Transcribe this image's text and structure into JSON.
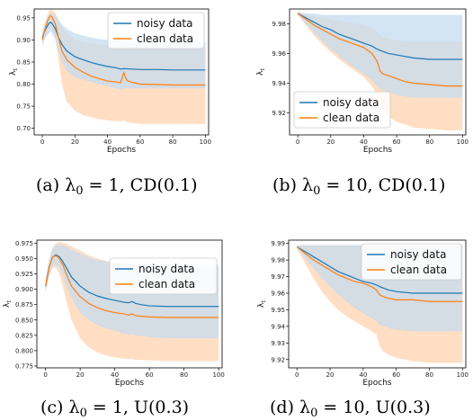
{
  "colors": {
    "noisy": "#1f77b4",
    "clean": "#ff7f0e",
    "noisy_band": "#c6dbef",
    "clean_band": "#ffd8b8"
  },
  "chart_data": [
    {
      "id": "a",
      "type": "line",
      "caption": {
        "prefix": "(a)  λ",
        "sub": "0",
        "suffix": " = 1, CD(0.1)"
      },
      "xlabel": "Epochs",
      "ylabel": "λ",
      "ylabel_sub": "t",
      "xlim": [
        -5,
        102
      ],
      "ylim": [
        0.685,
        0.97
      ],
      "xticks": [
        0,
        20,
        40,
        60,
        80,
        100
      ],
      "xtick_labels": [
        "0",
        "20",
        "40",
        "60",
        "80",
        "100"
      ],
      "yticks": [
        0.7,
        0.75,
        0.8,
        0.85,
        0.9,
        0.95
      ],
      "ytick_labels": [
        "0.70",
        "0.75",
        "0.80",
        "0.85",
        "0.90",
        "0.95"
      ],
      "legend": "top-right",
      "series": [
        {
          "name": "noisy data",
          "key": "noisy",
          "x": [
            0,
            2,
            4,
            5,
            6,
            8,
            10,
            12,
            15,
            20,
            25,
            30,
            35,
            40,
            45,
            48,
            50,
            55,
            60,
            70,
            80,
            90,
            100
          ],
          "y": [
            0.905,
            0.925,
            0.937,
            0.94,
            0.937,
            0.925,
            0.905,
            0.89,
            0.875,
            0.862,
            0.855,
            0.849,
            0.844,
            0.84,
            0.837,
            0.834,
            0.835,
            0.834,
            0.833,
            0.833,
            0.832,
            0.832,
            0.832
          ],
          "upper": [
            0.92,
            0.94,
            0.955,
            0.96,
            0.96,
            0.955,
            0.945,
            0.935,
            0.925,
            0.915,
            0.91,
            0.905,
            0.902,
            0.9,
            0.898,
            0.896,
            0.897,
            0.896,
            0.895,
            0.895,
            0.894,
            0.894,
            0.894
          ],
          "lower": [
            0.89,
            0.905,
            0.915,
            0.92,
            0.915,
            0.9,
            0.875,
            0.85,
            0.83,
            0.815,
            0.81,
            0.805,
            0.8,
            0.795,
            0.79,
            0.788,
            0.79,
            0.79,
            0.79,
            0.79,
            0.79,
            0.79,
            0.79
          ]
        },
        {
          "name": "clean data",
          "key": "clean",
          "x": [
            0,
            2,
            4,
            5,
            6,
            8,
            10,
            12,
            15,
            20,
            25,
            30,
            35,
            40,
            45,
            48,
            49,
            50,
            51,
            52,
            55,
            60,
            70,
            80,
            90,
            100
          ],
          "y": [
            0.9,
            0.93,
            0.95,
            0.955,
            0.952,
            0.935,
            0.905,
            0.875,
            0.855,
            0.838,
            0.827,
            0.818,
            0.812,
            0.807,
            0.805,
            0.803,
            0.815,
            0.826,
            0.815,
            0.808,
            0.804,
            0.8,
            0.799,
            0.798,
            0.798,
            0.798
          ],
          "upper": [
            0.915,
            0.945,
            0.965,
            0.968,
            0.968,
            0.96,
            0.945,
            0.93,
            0.915,
            0.9,
            0.895,
            0.892,
            0.89,
            0.888,
            0.886,
            0.885,
            0.886,
            0.887,
            0.886,
            0.885,
            0.884,
            0.883,
            0.882,
            0.882,
            0.882,
            0.882
          ],
          "lower": [
            0.885,
            0.91,
            0.93,
            0.93,
            0.925,
            0.9,
            0.855,
            0.8,
            0.76,
            0.74,
            0.73,
            0.725,
            0.72,
            0.718,
            0.716,
            0.715,
            0.716,
            0.718,
            0.716,
            0.714,
            0.712,
            0.71,
            0.71,
            0.71,
            0.71,
            0.71
          ]
        }
      ]
    },
    {
      "id": "b",
      "type": "line",
      "caption": {
        "prefix": "(b)  λ",
        "sub": "0",
        "suffix": " = 10, CD(0.1)"
      },
      "xlabel": "Epochs",
      "ylabel": "λ",
      "ylabel_sub": "t",
      "xlim": [
        -5,
        102
      ],
      "ylim": [
        9.905,
        9.99
      ],
      "xticks": [
        0,
        20,
        40,
        60,
        80,
        100
      ],
      "xtick_labels": [
        "0",
        "20",
        "40",
        "60",
        "80",
        "100"
      ],
      "yticks": [
        9.92,
        9.94,
        9.96,
        9.98
      ],
      "ytick_labels": [
        "9.92",
        "9.94",
        "9.96",
        "9.98"
      ],
      "legend": "bottom-left",
      "series": [
        {
          "name": "noisy data",
          "key": "noisy",
          "x": [
            0,
            5,
            10,
            15,
            20,
            25,
            30,
            35,
            40,
            45,
            48,
            50,
            55,
            60,
            70,
            80,
            90,
            100
          ],
          "y": [
            9.987,
            9.984,
            9.981,
            9.978,
            9.976,
            9.973,
            9.971,
            9.969,
            9.967,
            9.965,
            9.963,
            9.962,
            9.96,
            9.959,
            9.957,
            9.956,
            9.956,
            9.956
          ],
          "upper": [
            9.988,
            9.987,
            9.987,
            9.986,
            9.986,
            9.986,
            9.986,
            9.986,
            9.986,
            9.986,
            9.986,
            9.986,
            9.986,
            9.986,
            9.986,
            9.986,
            9.986,
            9.986
          ],
          "lower": [
            9.986,
            9.98,
            9.974,
            9.968,
            9.963,
            9.958,
            9.954,
            9.95,
            9.946,
            9.942,
            9.938,
            9.936,
            9.934,
            9.932,
            9.93,
            9.93,
            9.93,
            9.93
          ]
        },
        {
          "name": "clean data",
          "key": "clean",
          "x": [
            0,
            5,
            10,
            15,
            20,
            25,
            30,
            35,
            40,
            45,
            48,
            50,
            52,
            55,
            60,
            65,
            70,
            80,
            90,
            100
          ],
          "y": [
            9.987,
            9.983,
            9.979,
            9.976,
            9.973,
            9.97,
            9.968,
            9.966,
            9.964,
            9.96,
            9.955,
            9.948,
            9.946,
            9.945,
            9.943,
            9.941,
            9.94,
            9.939,
            9.938,
            9.938
          ],
          "upper": [
            9.988,
            9.986,
            9.985,
            9.984,
            9.983,
            9.982,
            9.981,
            9.98,
            9.979,
            9.977,
            9.975,
            9.972,
            9.971,
            9.97,
            9.969,
            9.968,
            9.968,
            9.968,
            9.968,
            9.968
          ],
          "lower": [
            9.986,
            9.979,
            9.972,
            9.966,
            9.961,
            9.956,
            9.952,
            9.948,
            9.944,
            9.938,
            9.932,
            9.924,
            9.92,
            9.917,
            9.914,
            9.912,
            9.91,
            9.909,
            9.908,
            9.908
          ]
        }
      ]
    },
    {
      "id": "c",
      "type": "line",
      "caption": {
        "prefix": "(c)  λ",
        "sub": "0",
        "suffix": " = 1, U(0.3)"
      },
      "xlabel": "Epochs",
      "ylabel": "λ",
      "ylabel_sub": "t",
      "xlim": [
        -5,
        102
      ],
      "ylim": [
        0.772,
        0.98
      ],
      "xticks": [
        0,
        20,
        40,
        60,
        80,
        100
      ],
      "xtick_labels": [
        "0",
        "20",
        "40",
        "60",
        "80",
        "100"
      ],
      "yticks": [
        0.775,
        0.8,
        0.825,
        0.85,
        0.875,
        0.9,
        0.925,
        0.95,
        0.975
      ],
      "ytick_labels": [
        "0.775",
        "0.800",
        "0.825",
        "0.850",
        "0.875",
        "0.900",
        "0.925",
        "0.950",
        "0.975"
      ],
      "legend": "top-right",
      "series": [
        {
          "name": "noisy data",
          "key": "noisy",
          "x": [
            0,
            2,
            4,
            6,
            8,
            10,
            12,
            15,
            20,
            25,
            30,
            35,
            40,
            45,
            48,
            50,
            52,
            55,
            60,
            70,
            80,
            90,
            100
          ],
          "y": [
            0.905,
            0.935,
            0.952,
            0.956,
            0.953,
            0.945,
            0.935,
            0.92,
            0.905,
            0.895,
            0.889,
            0.885,
            0.882,
            0.879,
            0.878,
            0.88,
            0.877,
            0.875,
            0.873,
            0.872,
            0.872,
            0.872,
            0.872
          ],
          "upper": [
            0.915,
            0.948,
            0.965,
            0.972,
            0.973,
            0.972,
            0.97,
            0.965,
            0.958,
            0.952,
            0.948,
            0.945,
            0.943,
            0.942,
            0.941,
            0.941,
            0.94,
            0.94,
            0.94,
            0.94,
            0.94,
            0.94,
            0.94
          ],
          "lower": [
            0.895,
            0.922,
            0.938,
            0.94,
            0.935,
            0.922,
            0.905,
            0.885,
            0.862,
            0.85,
            0.842,
            0.836,
            0.832,
            0.828,
            0.826,
            0.827,
            0.825,
            0.824,
            0.822,
            0.82,
            0.82,
            0.82,
            0.82
          ]
        },
        {
          "name": "clean data",
          "key": "clean",
          "x": [
            0,
            2,
            4,
            6,
            8,
            10,
            12,
            15,
            20,
            25,
            30,
            35,
            40,
            45,
            48,
            50,
            52,
            55,
            60,
            70,
            80,
            90,
            100
          ],
          "y": [
            0.905,
            0.935,
            0.952,
            0.955,
            0.95,
            0.94,
            0.925,
            0.905,
            0.888,
            0.877,
            0.87,
            0.865,
            0.862,
            0.86,
            0.858,
            0.86,
            0.857,
            0.856,
            0.855,
            0.854,
            0.854,
            0.854,
            0.854
          ],
          "upper": [
            0.915,
            0.948,
            0.968,
            0.975,
            0.977,
            0.976,
            0.974,
            0.97,
            0.963,
            0.955,
            0.95,
            0.946,
            0.943,
            0.94,
            0.939,
            0.94,
            0.938,
            0.937,
            0.936,
            0.935,
            0.935,
            0.935,
            0.935
          ],
          "lower": [
            0.895,
            0.92,
            0.935,
            0.935,
            0.925,
            0.905,
            0.88,
            0.85,
            0.82,
            0.805,
            0.797,
            0.792,
            0.789,
            0.787,
            0.786,
            0.787,
            0.785,
            0.785,
            0.784,
            0.783,
            0.783,
            0.783,
            0.783
          ]
        }
      ]
    },
    {
      "id": "d",
      "type": "line",
      "caption": {
        "prefix": "(d)  λ",
        "sub": "0",
        "suffix": " = 10, U(0.3)"
      },
      "xlabel": "Epochs",
      "ylabel": "λ",
      "ylabel_sub": "t",
      "xlim": [
        -5,
        102
      ],
      "ylim": [
        9.915,
        9.992
      ],
      "xticks": [
        0,
        20,
        40,
        60,
        80,
        100
      ],
      "xtick_labels": [
        "0",
        "20",
        "40",
        "60",
        "80",
        "100"
      ],
      "yticks": [
        9.92,
        9.93,
        9.94,
        9.95,
        9.96,
        9.97,
        9.98,
        9.99
      ],
      "ytick_labels": [
        "9.92",
        "9.93",
        "9.94",
        "9.95",
        "9.96",
        "9.97",
        "9.98",
        "9.99"
      ],
      "legend": "top-right",
      "series": [
        {
          "name": "noisy data",
          "key": "noisy",
          "x": [
            0,
            5,
            10,
            15,
            20,
            25,
            30,
            35,
            40,
            45,
            48,
            50,
            55,
            60,
            70,
            80,
            90,
            100
          ],
          "y": [
            9.988,
            9.985,
            9.982,
            9.979,
            9.976,
            9.973,
            9.971,
            9.969,
            9.967,
            9.966,
            9.965,
            9.964,
            9.962,
            9.961,
            9.96,
            9.96,
            9.96,
            9.96
          ],
          "upper": [
            9.989,
            9.989,
            9.989,
            9.989,
            9.989,
            9.989,
            9.989,
            9.989,
            9.989,
            9.989,
            9.989,
            9.989,
            9.989,
            9.989,
            9.989,
            9.989,
            9.989,
            9.989
          ],
          "lower": [
            9.987,
            9.981,
            9.975,
            9.969,
            9.964,
            9.959,
            9.955,
            9.951,
            9.948,
            9.945,
            9.943,
            9.941,
            9.939,
            9.938,
            9.937,
            9.937,
            9.937,
            9.937
          ]
        },
        {
          "name": "clean data",
          "key": "clean",
          "x": [
            0,
            5,
            10,
            15,
            20,
            25,
            30,
            35,
            40,
            45,
            48,
            50,
            52,
            55,
            60,
            70,
            80,
            90,
            100
          ],
          "y": [
            9.988,
            9.984,
            9.98,
            9.977,
            9.974,
            9.971,
            9.969,
            9.967,
            9.966,
            9.964,
            9.962,
            9.959,
            9.958,
            9.957,
            9.956,
            9.956,
            9.955,
            9.955,
            9.955
          ],
          "upper": [
            9.989,
            9.989,
            9.989,
            9.989,
            9.989,
            9.989,
            9.989,
            9.989,
            9.989,
            9.989,
            9.989,
            9.989,
            9.989,
            9.989,
            9.989,
            9.989,
            9.989,
            9.989,
            9.989
          ],
          "lower": [
            9.987,
            9.978,
            9.969,
            9.961,
            9.955,
            9.95,
            9.946,
            9.943,
            9.94,
            9.937,
            9.935,
            9.928,
            9.925,
            9.923,
            9.921,
            9.919,
            9.918,
            9.918,
            9.918
          ]
        }
      ]
    }
  ]
}
